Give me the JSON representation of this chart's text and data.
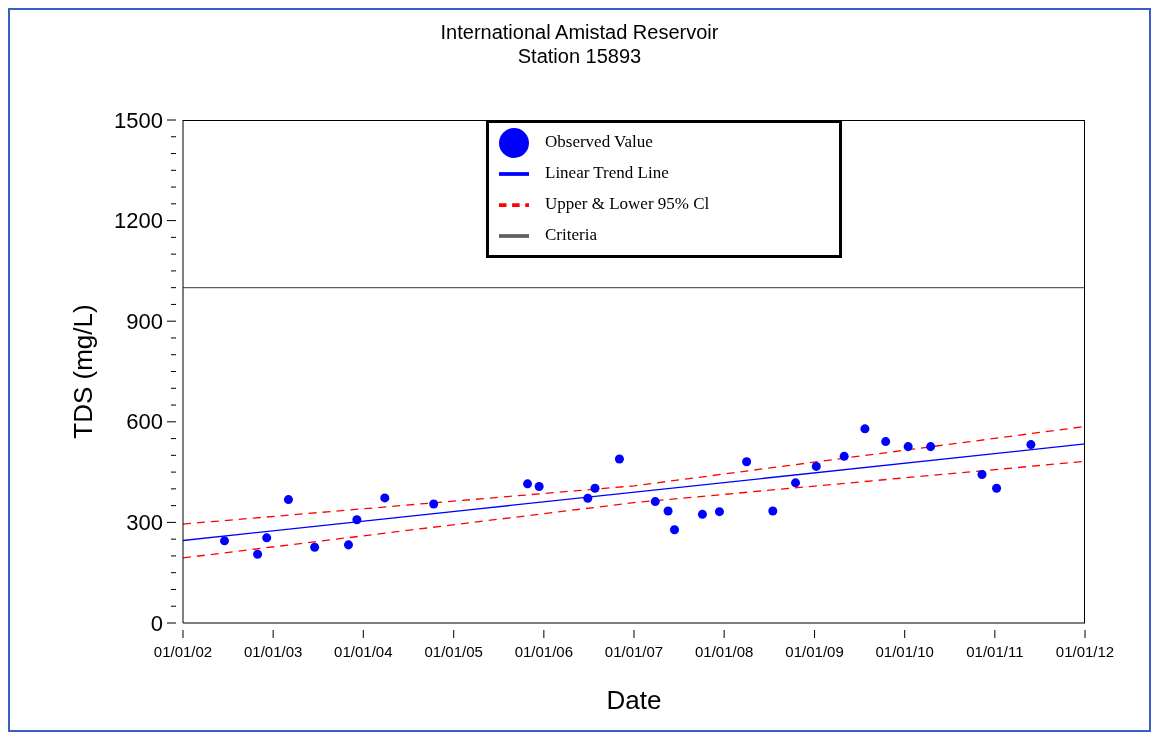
{
  "chart_data": {
    "type": "scatter",
    "title": "International Amistad Reservoir",
    "subtitle": "Station 15893",
    "xlabel": "Date",
    "ylabel": "TDS (mg/L)",
    "xlim": [
      "2002-01-01",
      "2012-01-01"
    ],
    "xticks": [
      {
        "value": "2002-01-01",
        "label": "01/01/02"
      },
      {
        "value": "2003-01-01",
        "label": "01/01/03"
      },
      {
        "value": "2004-01-01",
        "label": "01/01/04"
      },
      {
        "value": "2005-01-01",
        "label": "01/01/05"
      },
      {
        "value": "2006-01-01",
        "label": "01/01/06"
      },
      {
        "value": "2007-01-01",
        "label": "01/01/07"
      },
      {
        "value": "2008-01-01",
        "label": "01/01/08"
      },
      {
        "value": "2009-01-01",
        "label": "01/01/09"
      },
      {
        "value": "2010-01-01",
        "label": "01/01/10"
      },
      {
        "value": "2011-01-01",
        "label": "01/01/11"
      },
      {
        "value": "2012-01-01",
        "label": "01/01/12"
      }
    ],
    "ylim": [
      0,
      1500
    ],
    "yticks": [
      0,
      {
        "value": 50,
        "label": null
      },
      {
        "value": 100,
        "label": null
      },
      {
        "value": 150,
        "label": null
      },
      {
        "value": 200,
        "label": null
      },
      {
        "value": 250,
        "label": null
      },
      300,
      {
        "value": 350,
        "label": null
      },
      {
        "value": 400,
        "label": null
      },
      {
        "value": 450,
        "label": null
      },
      {
        "value": 500,
        "label": null
      },
      {
        "value": 550,
        "label": null
      },
      600,
      {
        "value": 650,
        "label": null
      },
      {
        "value": 700,
        "label": null
      },
      {
        "value": 750,
        "label": null
      },
      {
        "value": 800,
        "label": null
      },
      {
        "value": 850,
        "label": null
      },
      900,
      {
        "value": 950,
        "label": null
      },
      {
        "value": 1000,
        "label": null
      },
      {
        "value": 1050,
        "label": null
      },
      {
        "value": 1100,
        "label": null
      },
      {
        "value": 1150,
        "label": null
      },
      1200,
      {
        "value": 1250,
        "label": null
      },
      {
        "value": 1300,
        "label": null
      },
      {
        "value": 1350,
        "label": null
      },
      {
        "value": 1400,
        "label": null
      },
      {
        "value": 1450,
        "label": null
      },
      1500
    ],
    "grid": false,
    "legend": "top",
    "series": [
      {
        "name": "Observed Value",
        "marker": "circle",
        "color": "#0000ff",
        "x": [
          "2002-06-18",
          "2002-10-30",
          "2002-12-06",
          "2003-03-04",
          "2003-06-18",
          "2003-11-02",
          "2003-12-06",
          "2004-03-28",
          "2004-10-12",
          "2005-10-27",
          "2005-12-13",
          "2006-06-28",
          "2006-07-27",
          "2006-11-03",
          "2007-03-28",
          "2007-05-19",
          "2007-06-14",
          "2007-10-05",
          "2007-12-13",
          "2008-04-01",
          "2008-07-16",
          "2008-10-16",
          "2009-01-08",
          "2009-05-01",
          "2009-07-24",
          "2009-10-16",
          "2010-01-15",
          "2010-04-16",
          "2010-11-10",
          "2011-01-08",
          "2011-05-27"
        ],
        "values": [
          245,
          205,
          254,
          368,
          226,
          233,
          308,
          373,
          355,
          415,
          407,
          372,
          402,
          489,
          362,
          334,
          278,
          324,
          332,
          481,
          334,
          418,
          467,
          497,
          579,
          541,
          526,
          526,
          443,
          402,
          532
        ]
      },
      {
        "name": "Linear Trend Line",
        "type": "line",
        "line_style": "solid",
        "color": "#0000ff",
        "x": [
          "2002-01-01",
          "2012-01-01"
        ],
        "values": [
          246,
          534
        ]
      },
      {
        "name": "Upper & Lower 95% Cl",
        "type": "line",
        "line_style": "dashed",
        "color": "#ff0000",
        "x": [
          "2002-01-01",
          "2007-01-01",
          "2012-01-01"
        ],
        "values": [
          295,
          409,
          586
        ]
      },
      {
        "type": "line",
        "line_style": "dashed",
        "color": "#ff0000",
        "x": [
          "2002-01-01",
          "2007-01-01",
          "2012-01-01"
        ],
        "values": [
          194,
          359,
          482
        ]
      },
      {
        "name": "Criteria",
        "type": "line",
        "line_style": "solid",
        "color": "#606060",
        "x": [
          "2002-01-01",
          "2012-01-01"
        ],
        "values": [
          1000,
          1000
        ]
      }
    ]
  }
}
